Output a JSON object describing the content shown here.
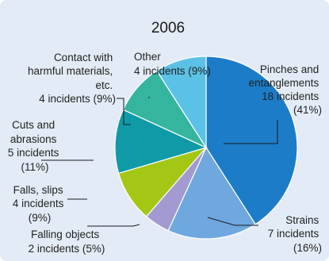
{
  "chart_data": {
    "type": "pie",
    "title": "2006",
    "slices": [
      {
        "name": "Pinches and entanglements",
        "incidents": 18,
        "percent_label": "(41%)",
        "color": "#1d7cc7"
      },
      {
        "name": "Strains",
        "incidents": 7,
        "percent_label": "(16%)",
        "color": "#6fa8de"
      },
      {
        "name": "Falling objects",
        "incidents": 2,
        "percent_label": "(5%)",
        "color": "#a39ad2"
      },
      {
        "name": "Falls, slips",
        "incidents": 4,
        "percent_label": "(9%)",
        "color": "#a4c614"
      },
      {
        "name": "Cuts and abrasions",
        "incidents": 5,
        "percent_label": "(11%)",
        "color": "#109aa8"
      },
      {
        "name": "Contact with harmful materials, etc.",
        "incidents": 4,
        "percent_label": "(9%)",
        "color": "#35b59d"
      },
      {
        "name": "Other",
        "incidents": 4,
        "percent_label": "(9%)",
        "color": "#5cc1e6"
      }
    ],
    "labels": {
      "pinches": [
        "Pinches and",
        "entanglements",
        "18 incidents",
        "(41%)"
      ],
      "strains": [
        "Strains",
        "7 incidents",
        "(16%)"
      ],
      "falling": [
        "Falling objects",
        "2 incidents (5%)"
      ],
      "falls": [
        "Falls, slips",
        "4 incidents",
        "(9%)"
      ],
      "cuts": [
        "Cuts and",
        "abrasions",
        "5 incidents",
        "(11%)"
      ],
      "contact": [
        "Contact with",
        "harmful materials,",
        "etc.",
        "4 incidents (9%)"
      ],
      "other": [
        "Other",
        "4 incidents (9%)"
      ]
    }
  }
}
